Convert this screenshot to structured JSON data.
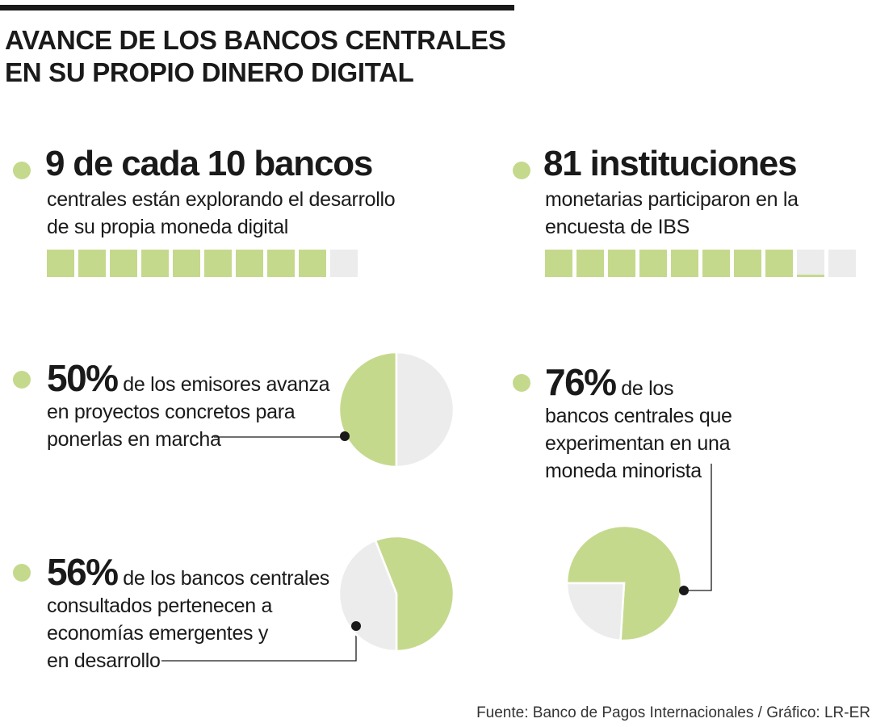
{
  "title_line1": "AVANCE DE LOS BANCOS CENTRALES",
  "title_line2": "EN SU PROPIO DINERO DIGITAL",
  "blocks": {
    "bancos": {
      "headline": "9 de cada 10 bancos",
      "line1": "centrales  están explorando el desarrollo",
      "line2": "de su propia moneda digital"
    },
    "instituciones": {
      "headline": "81 instituciones",
      "line1": "monetarias  participaron en la",
      "line2": "encuesta de IBS"
    },
    "emisores": {
      "value": "50%",
      "line1": "de los emisores avanza",
      "line2": "en proyectos concretos para",
      "line3": "ponerlas en marcha"
    },
    "emergentes": {
      "value": "56%",
      "line1": "de los bancos centrales",
      "line2": "consultados pertenecen a",
      "line3": "economías emergentes y",
      "line4": "en desarrollo"
    },
    "minorista": {
      "value": "76%",
      "line1": "de los",
      "line2": "bancos  centrales que",
      "line3": "experimentan en una",
      "line4": "moneda minorista"
    }
  },
  "source": "Fuente: Banco de Pagos Internacionales / Gráfico: LR-ER",
  "colors": {
    "accent": "#c5d98d",
    "empty": "#ececec",
    "text": "#1a1a1a"
  },
  "chart_data": [
    {
      "type": "waffle",
      "label": "9 de cada 10 bancos",
      "total_units": 10,
      "filled_units": 9
    },
    {
      "type": "waffle",
      "label": "81 instituciones",
      "total_units": 10,
      "filled_units": 8.1
    },
    {
      "type": "pie",
      "label": "50%",
      "slices": [
        {
          "value": 50,
          "color": "#c5d98d"
        },
        {
          "value": 50,
          "color": "#ececec"
        }
      ]
    },
    {
      "type": "pie",
      "label": "56%",
      "slices": [
        {
          "value": 56,
          "color": "#c5d98d"
        },
        {
          "value": 44,
          "color": "#ececec"
        }
      ]
    },
    {
      "type": "pie",
      "label": "76%",
      "slices": [
        {
          "value": 76,
          "color": "#c5d98d"
        },
        {
          "value": 24,
          "color": "#ececec"
        }
      ]
    }
  ]
}
